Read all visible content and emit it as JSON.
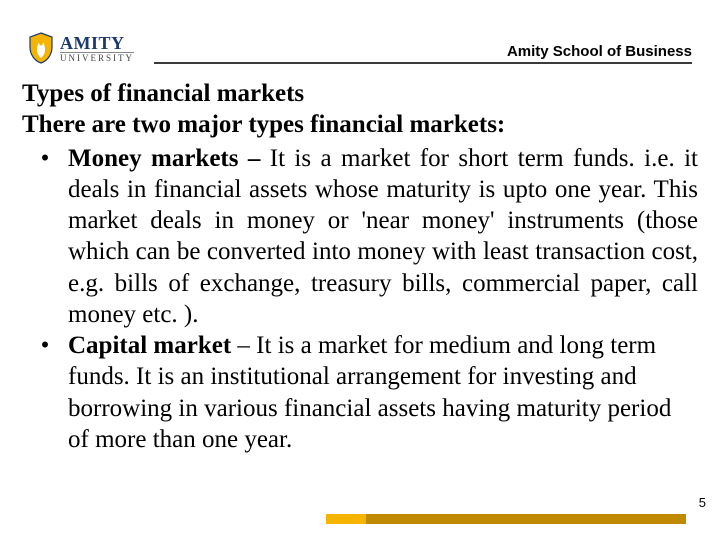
{
  "header": {
    "logo_main": "AMITY",
    "logo_sub": "UNIVERSITY",
    "school_label": "Amity School of Business"
  },
  "content": {
    "title": "Types of financial markets",
    "intro": "There are two major types financial markets:",
    "bullets": [
      {
        "mark": "•",
        "lead": "Money markets – ",
        "body": "It is a market for short term funds. i.e. it deals in financial assets whose maturity is upto one year. This market deals in money or 'near money' instruments (those which can be converted into money with least transaction cost, e.g. bills of exchange, treasury bills, commercial paper, call money etc. ).",
        "justify": true
      },
      {
        "mark": "•",
        "lead": "Capital market ",
        "body": "– It is a market for medium and long term funds. It is an institutional arrangement for investing and borrowing in various financial assets having maturity period of more than one year.",
        "justify": false
      }
    ]
  },
  "page_number": "5",
  "colors": {
    "logo_blue": "#1a3a6e",
    "shield_gold": "#f5b400",
    "rule": "#3a3a3a",
    "footer_gold_light": "#f5b400",
    "footer_gold_dark": "#c08a00"
  }
}
